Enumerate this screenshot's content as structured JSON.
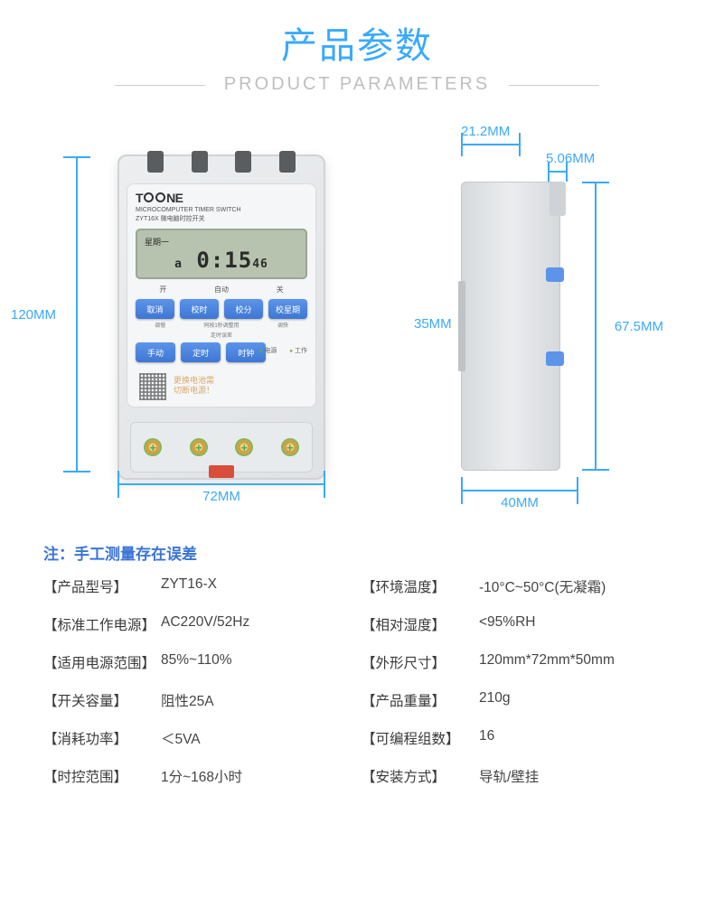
{
  "header": {
    "title_cn": "产品参数",
    "title_en": "PRODUCT PARAMETERS"
  },
  "accent_color": "#3aa9ff",
  "front_view": {
    "dim_height": "120MM",
    "dim_width": "72MM",
    "brand": "TOONE",
    "sub_en": "MICROCOMPUTER TIMER SWITCH",
    "sub_cn": "ZYT16X 微电脑时控开关",
    "lcd_day": "星期一",
    "lcd_a": "a",
    "lcd_time": "0:15",
    "lcd_sec": "46",
    "mode": {
      "on": "开",
      "auto": "自动",
      "off": "关"
    },
    "buttons_row1": [
      "取消",
      "校时",
      "校分",
      "校星期"
    ],
    "hints": [
      "调慢",
      "同按1秒调整用",
      "调快",
      ""
    ],
    "hints2": "走时误差",
    "buttons_row2": [
      "手动",
      "定时",
      "时钟"
    ],
    "leds": {
      "power": "电源",
      "work": "工作"
    },
    "warn1": "更换电池需",
    "warn2": "切断电源！"
  },
  "side_view": {
    "dim_top1": "21.2MM",
    "dim_top2": "5.06MM",
    "dim_mid": "35MM",
    "dim_height": "67.5MM",
    "dim_width": "40MM"
  },
  "note": "注：手工测量存在误差",
  "specs": [
    {
      "label": "产品型号",
      "value": "ZYT16-X"
    },
    {
      "label": "环境温度",
      "value": "-10°C~50°C(无凝霜)"
    },
    {
      "label": "标准工作电源",
      "value": "AC220V/52Hz"
    },
    {
      "label": "相对湿度",
      "value": "<95%RH"
    },
    {
      "label": "适用电源范围",
      "value": "85%~110%"
    },
    {
      "label": "外形尺寸",
      "value": "120mm*72mm*50mm"
    },
    {
      "label": "开关容量",
      "value": "阻性25A"
    },
    {
      "label": "产品重量",
      "value": "210g"
    },
    {
      "label": "消耗功率",
      "value": "＜5VA"
    },
    {
      "label": "可编程组数",
      "value": "16"
    },
    {
      "label": "时控范围",
      "value": "1分~168小时"
    },
    {
      "label": "安装方式",
      "value": "导轨/壁挂"
    }
  ]
}
